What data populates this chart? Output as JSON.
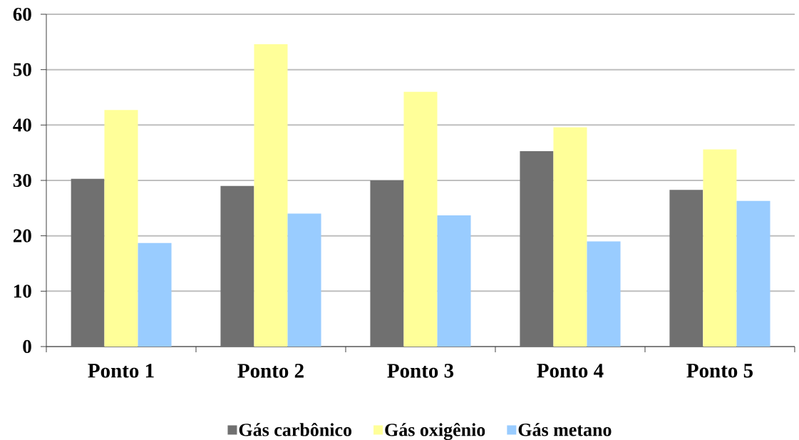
{
  "chart_data": {
    "type": "bar",
    "categories": [
      "Ponto 1",
      "Ponto 2",
      "Ponto 3",
      "Ponto 4",
      "Ponto 5"
    ],
    "series": [
      {
        "name": "Gás carbônico",
        "color": "#707070",
        "values": [
          30.3,
          29.0,
          30.0,
          35.3,
          28.3
        ]
      },
      {
        "name": "Gás oxigênio",
        "color": "#ffff99",
        "values": [
          42.7,
          54.6,
          46.0,
          39.6,
          35.6
        ]
      },
      {
        "name": "Gás metano",
        "color": "#99ccff",
        "values": [
          18.7,
          24.0,
          23.7,
          19.0,
          26.3
        ]
      }
    ],
    "ylim": [
      0,
      60
    ],
    "yticks": [
      0,
      10,
      20,
      30,
      40,
      50,
      60
    ],
    "grid": "y",
    "legend": "bottom"
  }
}
